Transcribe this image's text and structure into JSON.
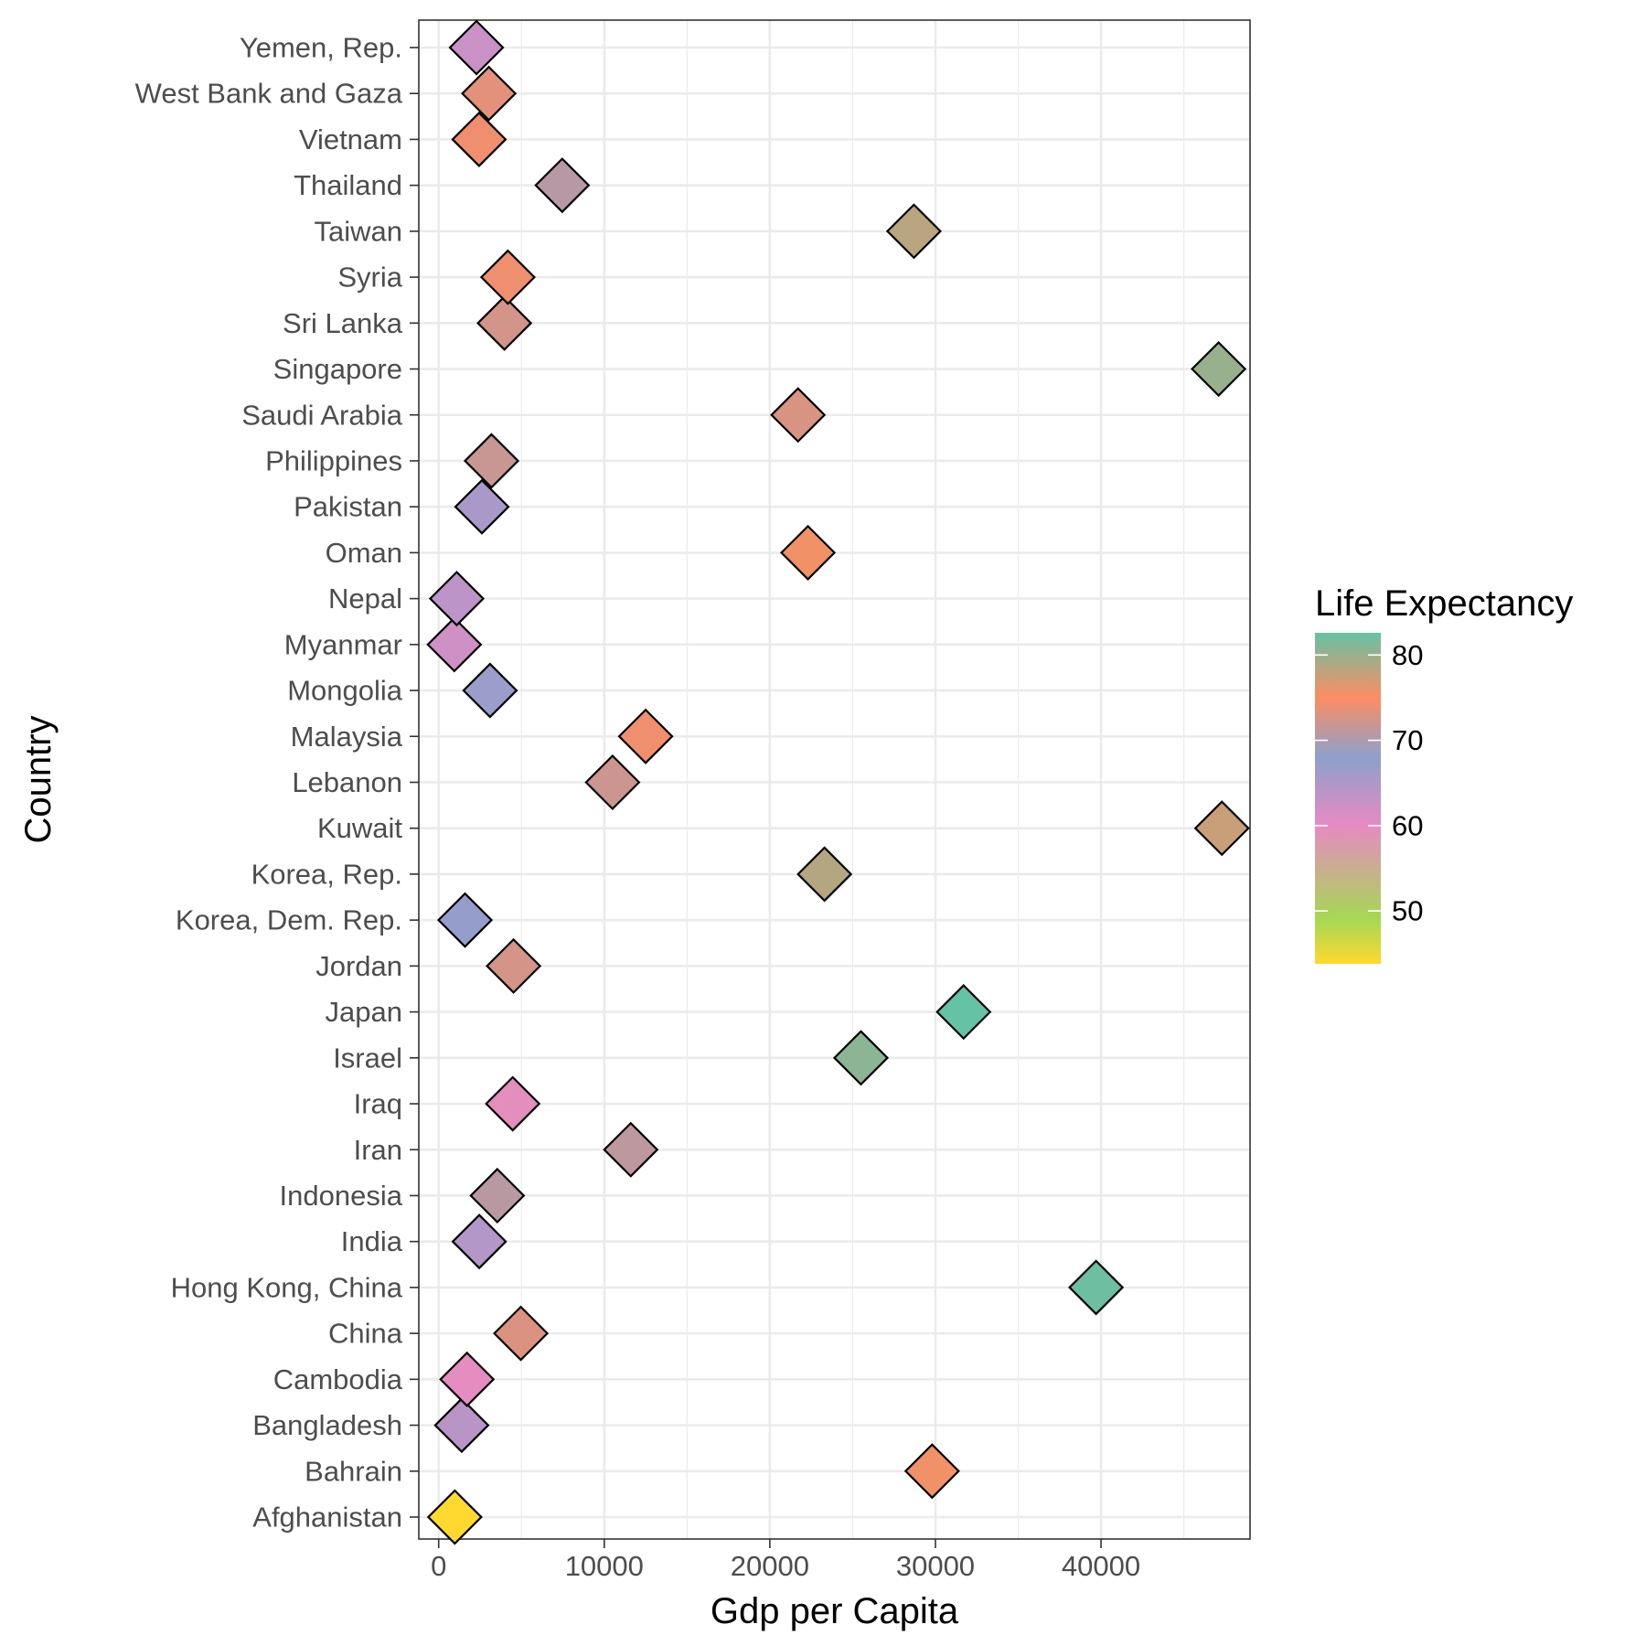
{
  "chart_data": {
    "type": "scatter",
    "xlabel": "Gdp per Capita",
    "ylabel": "Country",
    "xlim": [
      -1200,
      49000
    ],
    "x_ticks": [
      0,
      10000,
      20000,
      30000,
      40000
    ],
    "x_tick_labels": [
      "0",
      "10000",
      "20000",
      "30000",
      "40000"
    ],
    "grid": true,
    "marker": "diamond",
    "categories": [
      "Afghanistan",
      "Bahrain",
      "Bangladesh",
      "Cambodia",
      "China",
      "Hong Kong, China",
      "India",
      "Indonesia",
      "Iran",
      "Iraq",
      "Israel",
      "Japan",
      "Jordan",
      "Korea, Dem. Rep.",
      "Korea, Rep.",
      "Kuwait",
      "Lebanon",
      "Malaysia",
      "Mongolia",
      "Myanmar",
      "Nepal",
      "Oman",
      "Pakistan",
      "Philippines",
      "Saudi Arabia",
      "Singapore",
      "Sri Lanka",
      "Syria",
      "Taiwan",
      "Thailand",
      "Vietnam",
      "West Bank and Gaza",
      "Yemen, Rep."
    ],
    "points": [
      {
        "country": "Afghanistan",
        "gdp": 974,
        "life": 43.8
      },
      {
        "country": "Bahrain",
        "gdp": 29800,
        "life": 75.6
      },
      {
        "country": "Bangladesh",
        "gdp": 1390,
        "life": 64.1
      },
      {
        "country": "Cambodia",
        "gdp": 1710,
        "life": 59.7
      },
      {
        "country": "China",
        "gdp": 4960,
        "life": 73.0
      },
      {
        "country": "Hong Kong, China",
        "gdp": 39700,
        "life": 82.2
      },
      {
        "country": "India",
        "gdp": 2450,
        "life": 64.7
      },
      {
        "country": "Indonesia",
        "gdp": 3540,
        "life": 70.7
      },
      {
        "country": "Iran",
        "gdp": 11600,
        "life": 71.0
      },
      {
        "country": "Iraq",
        "gdp": 4470,
        "life": 59.5
      },
      {
        "country": "Israel",
        "gdp": 25500,
        "life": 80.7
      },
      {
        "country": "Japan",
        "gdp": 31700,
        "life": 82.6
      },
      {
        "country": "Jordan",
        "gdp": 4520,
        "life": 72.5
      },
      {
        "country": "Korea, Dem. Rep.",
        "gdp": 1590,
        "life": 67.3
      },
      {
        "country": "Korea, Rep.",
        "gdp": 23300,
        "life": 78.6
      },
      {
        "country": "Kuwait",
        "gdp": 47300,
        "life": 77.6
      },
      {
        "country": "Lebanon",
        "gdp": 10500,
        "life": 72.0
      },
      {
        "country": "Malaysia",
        "gdp": 12500,
        "life": 74.2
      },
      {
        "country": "Mongolia",
        "gdp": 3100,
        "life": 66.8
      },
      {
        "country": "Myanmar",
        "gdp": 944,
        "life": 62.1
      },
      {
        "country": "Nepal",
        "gdp": 1090,
        "life": 63.8
      },
      {
        "country": "Oman",
        "gdp": 22300,
        "life": 75.6
      },
      {
        "country": "Pakistan",
        "gdp": 2610,
        "life": 65.5
      },
      {
        "country": "Philippines",
        "gdp": 3190,
        "life": 71.7
      },
      {
        "country": "Saudi Arabia",
        "gdp": 21700,
        "life": 72.8
      },
      {
        "country": "Singapore",
        "gdp": 47100,
        "life": 80.0
      },
      {
        "country": "Sri Lanka",
        "gdp": 3970,
        "life": 72.4
      },
      {
        "country": "Syria",
        "gdp": 4180,
        "life": 74.1
      },
      {
        "country": "Taiwan",
        "gdp": 28700,
        "life": 78.4
      },
      {
        "country": "Thailand",
        "gdp": 7460,
        "life": 70.6
      },
      {
        "country": "Vietnam",
        "gdp": 2440,
        "life": 74.2
      },
      {
        "country": "West Bank and Gaza",
        "gdp": 3030,
        "life": 73.4
      },
      {
        "country": "Yemen, Rep.",
        "gdp": 2280,
        "life": 62.7
      }
    ],
    "legend": {
      "title": "Life Expectancy",
      "position": "right",
      "ticks": [
        50,
        60,
        70,
        80
      ],
      "tick_labels": [
        "50",
        "60",
        "70",
        "80"
      ],
      "range": [
        43.8,
        82.6
      ],
      "gradient": [
        {
          "value": 43.8,
          "color": "#FFD92F"
        },
        {
          "value": 49,
          "color": "#A6D854"
        },
        {
          "value": 60,
          "color": "#E78AC3"
        },
        {
          "value": 68,
          "color": "#8DA0CB"
        },
        {
          "value": 75,
          "color": "#FC8D62"
        },
        {
          "value": 82.6,
          "color": "#66C2A5"
        }
      ]
    }
  }
}
